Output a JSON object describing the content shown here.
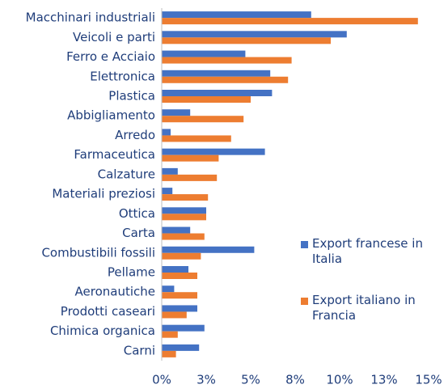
{
  "chart_data": {
    "type": "hbar",
    "categories": [
      "Macchinari industriali",
      "Veicoli e parti",
      "Ferro e Acciaio",
      "Elettronica",
      "Plastica",
      "Abbigliamento",
      "Arredo",
      "Farmaceutica",
      "Calzature",
      "Materiali preziosi",
      "Ottica",
      "Carta",
      "Combustibili fossili",
      "Pellame",
      "Aeronautiche",
      "Prodotti caseari",
      "Chimica organica",
      "Carni"
    ],
    "series": [
      {
        "name": "Export francese in Italia",
        "color": "#4472c4",
        "values": [
          8.4,
          10.4,
          4.7,
          6.1,
          6.2,
          1.6,
          0.5,
          5.8,
          0.9,
          0.6,
          2.5,
          1.6,
          5.2,
          1.5,
          0.7,
          2.0,
          2.4,
          2.1
        ]
      },
      {
        "name": "Export italiano in Francia",
        "color": "#ed7d31",
        "values": [
          14.4,
          9.5,
          7.3,
          7.1,
          5.0,
          4.6,
          3.9,
          3.2,
          3.1,
          2.6,
          2.5,
          2.4,
          2.2,
          2.0,
          2.0,
          1.4,
          0.9,
          0.8
        ]
      }
    ],
    "xlim": [
      0,
      15
    ],
    "xticks": [
      {
        "value": 0,
        "label": "0%"
      },
      {
        "value": 2.5,
        "label": "3%"
      },
      {
        "value": 5,
        "label": "5%"
      },
      {
        "value": 7.5,
        "label": "8%"
      },
      {
        "value": 10,
        "label": "10%"
      },
      {
        "value": 12.5,
        "label": "13%"
      },
      {
        "value": 15,
        "label": "15%"
      }
    ],
    "legend": "right",
    "grid": false
  }
}
